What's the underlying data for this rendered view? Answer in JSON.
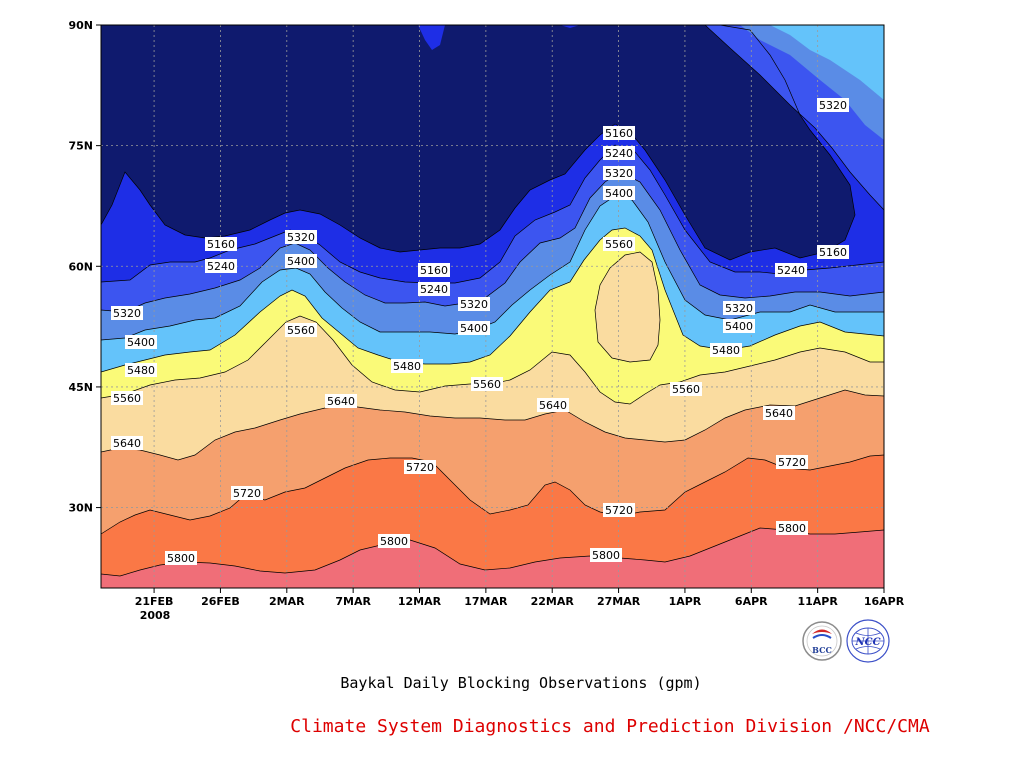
{
  "chart_data": {
    "type": "contour",
    "title": "Baykal Daily Blocking Observations (gpm)",
    "credit": "Climate System Diagnostics and Prediction Division /NCC/CMA",
    "x_tick_labels": [
      "21FEB",
      "26FEB",
      "2MAR",
      "7MAR",
      "12MAR",
      "17MAR",
      "22MAR",
      "27MAR",
      "1APR",
      "6APR",
      "11APR",
      "16APR"
    ],
    "year_label": "2008",
    "y_tick_labels": [
      "30N",
      "45N",
      "60N",
      "75N",
      "90N"
    ],
    "x_range": [
      "17FEB2008",
      "16APR2008"
    ],
    "y_range": [
      20,
      90
    ],
    "grid": true,
    "contour_levels": [
      5160,
      5240,
      5320,
      5400,
      5480,
      5560,
      5640,
      5720,
      5800
    ],
    "contour_labels": [
      "5160",
      "5240",
      "5320",
      "5400",
      "5480",
      "5560",
      "5640",
      "5720",
      "5800"
    ],
    "fill_colors": {
      "below_5160": "#0f1a6e",
      "5160_5240": "#1e2ee6",
      "5240_5320": "#3c55f0",
      "5320_5400": "#5a8ce6",
      "5400_5480": "#64c3fa",
      "5480_5560": "#fafa78",
      "5560_5640": "#fadca0",
      "5640_5720": "#f5a06e",
      "5720_5800": "#fa7846",
      "above_5800": "#f06e78"
    },
    "logos": [
      "BCC",
      "NCC"
    ]
  }
}
